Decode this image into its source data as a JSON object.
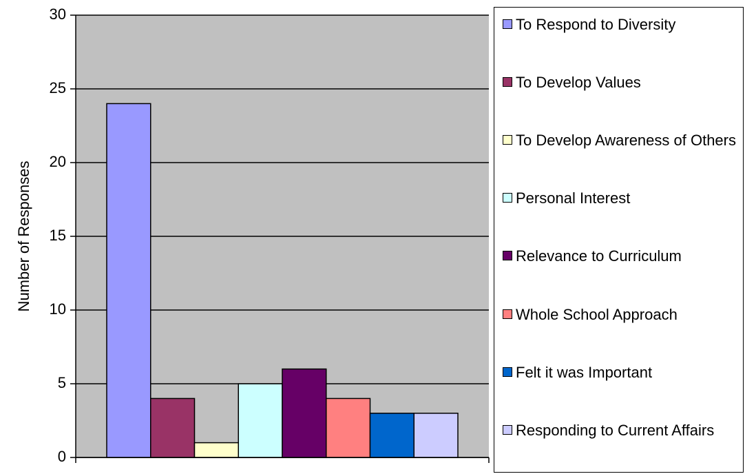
{
  "chart_data": {
    "type": "bar",
    "y_label": "Number of Responses",
    "categories": [
      null
    ],
    "series": [
      {
        "name": "To Respond to Diversity",
        "color": "#9999ff",
        "values": [
          24
        ]
      },
      {
        "name": "To Develop Values",
        "color": "#993366",
        "values": [
          4
        ]
      },
      {
        "name": "To Develop Awareness of Others",
        "color": "#ffffcc",
        "values": [
          1
        ]
      },
      {
        "name": "Personal Interest",
        "color": "#ccffff",
        "values": [
          5
        ]
      },
      {
        "name": "Relevance to Curriculum",
        "color": "#660066",
        "values": [
          6
        ]
      },
      {
        "name": "Whole School Approach",
        "color": "#ff8080",
        "values": [
          4
        ]
      },
      {
        "name": "Felt it was Important",
        "color": "#0066cc",
        "values": [
          3
        ]
      },
      {
        "name": "Responding to Current Affairs",
        "color": "#ccccff",
        "values": [
          3
        ]
      }
    ],
    "ylim": [
      0,
      30
    ],
    "yticks": [
      0,
      5,
      10,
      15,
      20,
      25,
      30
    ],
    "grid": true,
    "plot_background": "#c0c0c0",
    "legend": "right"
  }
}
